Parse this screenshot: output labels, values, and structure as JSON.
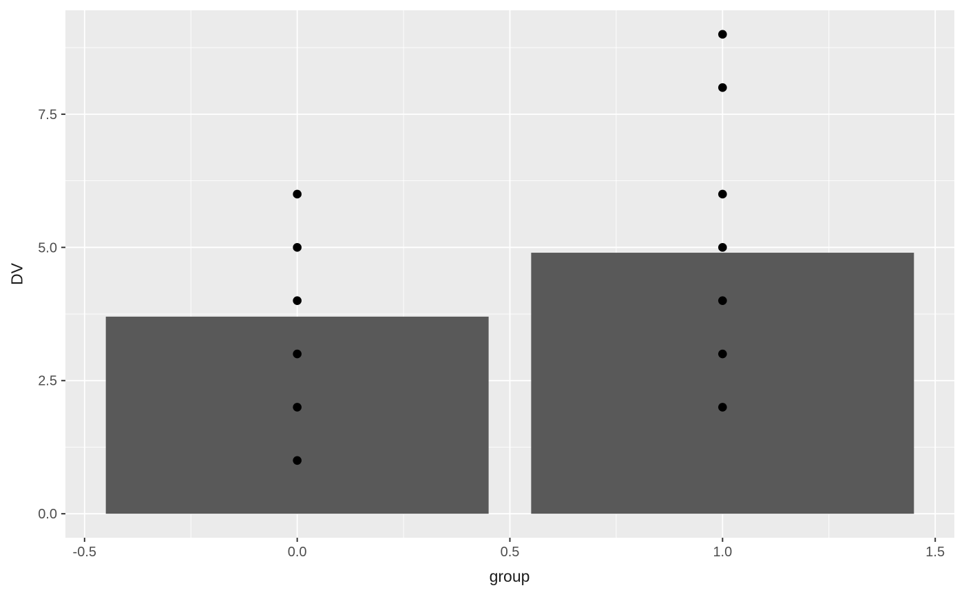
{
  "chart_data": {
    "type": "bar",
    "subtype": "bar-with-overlaid-points",
    "title": "",
    "xlabel": "group",
    "ylabel": "DV",
    "xlim": [
      -0.545,
      1.545
    ],
    "ylim": [
      -0.45,
      9.45
    ],
    "x_ticks": {
      "values": [
        -0.5,
        0.0,
        0.5,
        1.0,
        1.5
      ],
      "labels": [
        "-0.5",
        "0.0",
        "0.5",
        "1.0",
        "1.5"
      ]
    },
    "y_ticks": {
      "values": [
        0.0,
        2.5,
        5.0,
        7.5
      ],
      "labels": [
        "0.0",
        "2.5",
        "5.0",
        "7.5"
      ]
    },
    "grid": {
      "major": true,
      "minor": true
    },
    "legend_position": "none",
    "bars": {
      "x": [
        0,
        1
      ],
      "heights": [
        3.7,
        4.9
      ],
      "bar_width": 0.9,
      "baseline": 0
    },
    "points": [
      {
        "x": 0,
        "values": [
          1,
          2,
          3,
          4,
          5,
          6
        ]
      },
      {
        "x": 1,
        "values": [
          2,
          3,
          4,
          5,
          6,
          8,
          9
        ]
      }
    ],
    "colors": {
      "figure_background": "#FFFFFF",
      "panel_background": "#EBEBEB",
      "gridline": "#FFFFFF",
      "bar_fill": "#595959",
      "point_fill": "#000000",
      "tick_label": "#4D4D4D",
      "tick_mark": "#333333",
      "axis_title": "#1A1A1A"
    }
  }
}
